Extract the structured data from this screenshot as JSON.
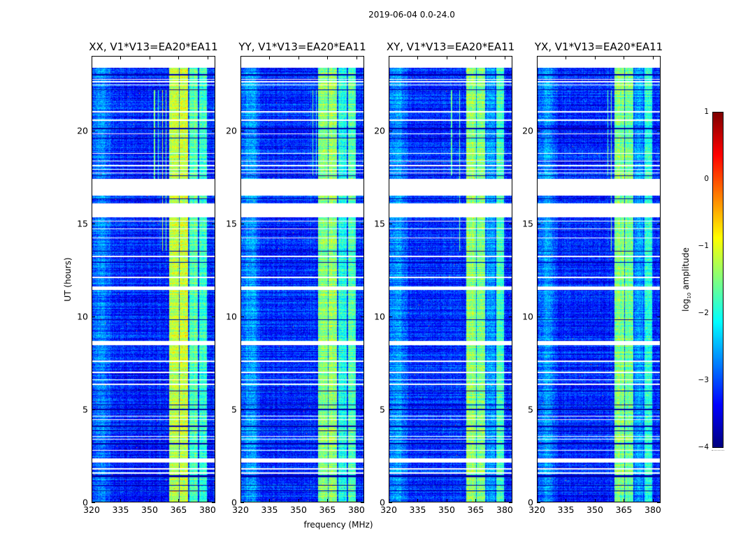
{
  "suptitle": "2019-06-04 0.0-24.0",
  "chart_data": {
    "type": "heatmap",
    "title": "2019-06-04 0.0-24.0",
    "xlabel": "frequency (MHz)",
    "ylabel": "UT (hours)",
    "xlim": [
      320,
      384
    ],
    "ylim": [
      0,
      24
    ],
    "data_time_range": [
      0,
      23.4
    ],
    "xticks": [
      320,
      335,
      350,
      365,
      380
    ],
    "yticks": [
      0,
      5,
      10,
      15,
      20
    ],
    "colorbar": {
      "label_main": "log",
      "label_sub": "10",
      "label_rest": " amplitude",
      "range": [
        -4,
        1
      ],
      "ticks": [
        1,
        0,
        -1,
        -2,
        -3,
        -4
      ],
      "tick_labels": [
        "1",
        "0",
        "−1",
        "−2",
        "−3",
        "−4"
      ],
      "colormap": "jet"
    },
    "flagged_time_intervals_hours": [
      [
        16.5,
        17.4
      ],
      [
        15.35,
        16.1
      ],
      [
        22.75,
        22.8
      ],
      [
        22.62,
        22.67
      ],
      [
        22.45,
        22.5
      ],
      [
        21.0,
        21.05
      ],
      [
        20.55,
        20.6
      ],
      [
        19.8,
        19.85
      ],
      [
        18.75,
        18.8
      ],
      [
        18.35,
        18.4
      ],
      [
        18.1,
        18.15
      ],
      [
        17.9,
        17.95
      ],
      [
        17.7,
        17.75
      ],
      [
        15.1,
        15.15
      ],
      [
        14.7,
        14.75
      ],
      [
        14.2,
        14.25
      ],
      [
        13.2,
        13.26
      ],
      [
        12.05,
        12.12
      ],
      [
        11.4,
        11.6
      ],
      [
        8.45,
        8.65
      ],
      [
        7.55,
        7.6
      ],
      [
        6.95,
        7.0
      ],
      [
        6.55,
        6.6
      ],
      [
        6.3,
        6.35
      ],
      [
        4.6,
        4.65
      ],
      [
        4.4,
        4.45
      ],
      [
        3.5,
        3.55
      ],
      [
        3.35,
        3.4
      ],
      [
        2.75,
        2.8
      ],
      [
        2.1,
        2.32
      ],
      [
        1.75,
        1.8
      ],
      [
        1.5,
        1.58
      ]
    ],
    "dark_time_rows_hours": [
      [
        23.0,
        23.05
      ],
      [
        22.2,
        22.24
      ],
      [
        20.1,
        20.15
      ],
      [
        19.6,
        19.63
      ],
      [
        17.55,
        17.6
      ],
      [
        16.3,
        16.35
      ],
      [
        13.5,
        13.53
      ],
      [
        12.9,
        12.93
      ],
      [
        9.8,
        9.85
      ],
      [
        7.9,
        7.93
      ],
      [
        5.95,
        6.0
      ],
      [
        5.2,
        5.23
      ],
      [
        4.95,
        5.0
      ],
      [
        4.05,
        4.1
      ],
      [
        3.8,
        3.83
      ],
      [
        3.1,
        3.15
      ],
      [
        1.3,
        1.45
      ],
      [
        0.85,
        0.9
      ],
      [
        0.55,
        0.6
      ]
    ],
    "panels": [
      {
        "title": "XX, V1*V13=EA20*EA11",
        "background_level": -3.2,
        "bands": [
          {
            "from": 360.4,
            "to": 365.2,
            "level": -1.2
          },
          {
            "from": 365.2,
            "to": 365.6,
            "level": -2.8
          },
          {
            "from": 365.6,
            "to": 370.0,
            "level": -1.1
          },
          {
            "from": 370.0,
            "to": 371.0,
            "level": -3.0
          },
          {
            "from": 371.0,
            "to": 375.3,
            "level": -1.7
          },
          {
            "from": 375.3,
            "to": 375.8,
            "level": -3.0
          },
          {
            "from": 375.8,
            "to": 380.0,
            "level": -1.9
          }
        ],
        "rfi_lines": [
          {
            "freq": 352.5,
            "from": 17.0,
            "to": 22.2,
            "level": -1.5
          },
          {
            "freq": 354.5,
            "from": 17.0,
            "to": 22.2,
            "level": -1.8
          },
          {
            "freq": 356.8,
            "from": 13.5,
            "to": 22.2,
            "level": -1.3
          },
          {
            "freq": 358.6,
            "from": 13.5,
            "to": 22.2,
            "level": -1.6
          }
        ]
      },
      {
        "title": "YY, V1*V13=EA20*EA11",
        "background_level": -3.2,
        "bands": [
          {
            "from": 360.4,
            "to": 365.2,
            "level": -1.5
          },
          {
            "from": 365.2,
            "to": 365.6,
            "level": -2.8
          },
          {
            "from": 365.6,
            "to": 370.0,
            "level": -1.4
          },
          {
            "from": 370.0,
            "to": 371.0,
            "level": -3.0
          },
          {
            "from": 371.0,
            "to": 375.3,
            "level": -2.0
          },
          {
            "from": 375.3,
            "to": 375.8,
            "level": -3.0
          },
          {
            "from": 375.8,
            "to": 380.0,
            "level": -1.8
          }
        ],
        "rfi_lines": [
          {
            "freq": 357.5,
            "from": 17.6,
            "to": 22.2,
            "level": -1.8
          },
          {
            "freq": 359.3,
            "from": 17.6,
            "to": 22.2,
            "level": -1.8
          }
        ]
      },
      {
        "title": "XY, V1*V13=EA20*EA11",
        "background_level": -3.2,
        "bands": [
          {
            "from": 360.4,
            "to": 365.2,
            "level": -1.4
          },
          {
            "from": 365.2,
            "to": 365.6,
            "level": -2.8
          },
          {
            "from": 365.6,
            "to": 370.0,
            "level": -1.5
          },
          {
            "from": 370.0,
            "to": 371.0,
            "level": -3.0
          },
          {
            "from": 371.0,
            "to": 375.3,
            "level": -2.6
          },
          {
            "from": 375.3,
            "to": 375.8,
            "level": -3.0
          },
          {
            "from": 375.8,
            "to": 380.0,
            "level": -1.8
          }
        ],
        "rfi_lines": [
          {
            "freq": 352.5,
            "from": 17.6,
            "to": 22.2,
            "level": -1.8
          },
          {
            "freq": 356.8,
            "from": 13.5,
            "to": 22.2,
            "level": -1.6
          }
        ]
      },
      {
        "title": "YX, V1*V13=EA20*EA11",
        "background_level": -3.2,
        "bands": [
          {
            "from": 360.4,
            "to": 365.2,
            "level": -1.5
          },
          {
            "from": 365.2,
            "to": 365.6,
            "level": -2.8
          },
          {
            "from": 365.6,
            "to": 370.0,
            "level": -1.6
          },
          {
            "from": 370.0,
            "to": 371.0,
            "level": -3.0
          },
          {
            "from": 371.0,
            "to": 375.3,
            "level": -2.6
          },
          {
            "from": 375.3,
            "to": 375.8,
            "level": -3.0
          },
          {
            "from": 375.8,
            "to": 380.0,
            "level": -2.0
          }
        ],
        "rfi_lines": [
          {
            "freq": 356.8,
            "from": 17.6,
            "to": 22.2,
            "level": -1.8
          },
          {
            "freq": 358.6,
            "from": 13.5,
            "to": 22.2,
            "level": -1.6
          }
        ]
      }
    ]
  }
}
